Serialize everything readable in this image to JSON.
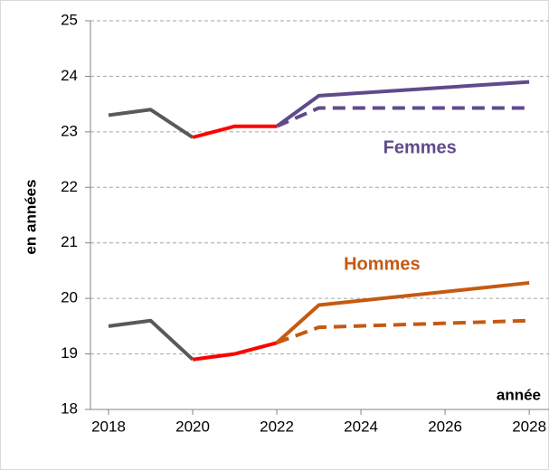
{
  "chart_data": {
    "type": "line",
    "y_label": "en années",
    "x_label": "année",
    "annotations": [
      {
        "text": "Femmes",
        "x": 2025.4,
        "y": 22.7,
        "color": "#5f4b8b"
      },
      {
        "text": "Hommes",
        "x": 2024.5,
        "y": 20.6,
        "color": "#c55a11"
      }
    ],
    "xlim": [
      2017.57,
      2028.47
    ],
    "xticks": [
      2018,
      2020,
      2022,
      2024,
      2026,
      2028
    ],
    "ylim": [
      18,
      25
    ],
    "yticks": [
      18,
      19,
      20,
      21,
      22,
      23,
      24,
      25
    ],
    "grid": true,
    "series": [
      {
        "color": "#595959",
        "dash": false,
        "x": [
          2018,
          2019,
          2020
        ],
        "values": [
          23.3,
          23.4,
          22.9
        ]
      },
      {
        "color": "#ff0000",
        "dash": false,
        "x": [
          2020,
          2021,
          2022
        ],
        "values": [
          22.9,
          23.1,
          23.1
        ]
      },
      {
        "color": "#5f4b8b",
        "dash": false,
        "x": [
          2022,
          2023,
          2028
        ],
        "values": [
          23.1,
          23.65,
          23.9
        ]
      },
      {
        "color": "#5f4b8b",
        "dash": true,
        "x": [
          2022,
          2023,
          2028
        ],
        "values": [
          23.1,
          23.43,
          23.43
        ]
      },
      {
        "color": "#595959",
        "dash": false,
        "x": [
          2018,
          2019,
          2020
        ],
        "values": [
          19.5,
          19.6,
          18.9
        ]
      },
      {
        "color": "#ff0000",
        "dash": false,
        "x": [
          2020,
          2021,
          2022
        ],
        "values": [
          18.9,
          19.0,
          19.2
        ]
      },
      {
        "color": "#c55a11",
        "dash": false,
        "x": [
          2022,
          2023,
          2028
        ],
        "values": [
          19.2,
          19.88,
          20.28
        ]
      },
      {
        "color": "#c55a11",
        "dash": true,
        "x": [
          2022,
          2023,
          2028
        ],
        "values": [
          19.2,
          19.48,
          19.6
        ]
      }
    ]
  }
}
